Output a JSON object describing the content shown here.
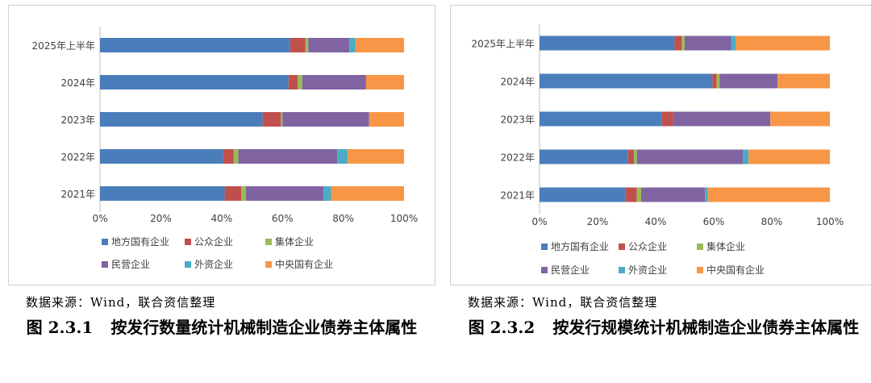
{
  "source": "数据来源：Wind，联合资信整理",
  "chart_data": [
    {
      "type": "bar",
      "orientation": "horizontal",
      "stacked": true,
      "percent": true,
      "figure_number": "图 2.3.1",
      "caption": "按发行数量统计机械制造企业债券主体属性",
      "categories": [
        "2025年上半年",
        "2024年",
        "2023年",
        "2022年",
        "2021年"
      ],
      "series": [
        {
          "name": "地方国有企业",
          "color": "#4A7EBB",
          "values": [
            62.5,
            62,
            53.5,
            40.5,
            41
          ]
        },
        {
          "name": "公众企业",
          "color": "#C0504D",
          "values": [
            5,
            3,
            6,
            3.5,
            5.5
          ]
        },
        {
          "name": "集体企业",
          "color": "#9BBB59",
          "values": [
            1,
            1.5,
            0.5,
            1.5,
            1.5
          ]
        },
        {
          "name": "民营企业",
          "color": "#8064A2",
          "values": [
            13.5,
            21,
            28.5,
            32.5,
            25.5
          ]
        },
        {
          "name": "外资企业",
          "color": "#4BACC6",
          "values": [
            2,
            0,
            0,
            3.5,
            2.5
          ]
        },
        {
          "name": "中央国有企业",
          "color": "#F79646",
          "values": [
            16,
            12.5,
            11.5,
            18.5,
            24
          ]
        }
      ],
      "xlim": [
        0,
        100
      ],
      "xticks": [
        "0%",
        "20%",
        "40%",
        "60%",
        "80%",
        "100%"
      ],
      "legend_position": "bottom",
      "grid": false
    },
    {
      "type": "bar",
      "orientation": "horizontal",
      "stacked": true,
      "percent": true,
      "figure_number": "图 2.3.2",
      "caption": "按发行规模统计机械制造企业债券主体属性",
      "categories": [
        "2025年上半年",
        "2024年",
        "2023年",
        "2022年",
        "2021年"
      ],
      "series": [
        {
          "name": "地方国有企业",
          "color": "#4A7EBB",
          "values": [
            46.5,
            59.5,
            42,
            30.5,
            29.5
          ]
        },
        {
          "name": "公众企业",
          "color": "#C0504D",
          "values": [
            2.5,
            1.5,
            4,
            2,
            4
          ]
        },
        {
          "name": "集体企业",
          "color": "#9BBB59",
          "values": [
            1,
            1,
            0,
            1,
            1.5
          ]
        },
        {
          "name": "民营企业",
          "color": "#8064A2",
          "values": [
            16,
            20,
            33.5,
            36.5,
            22
          ]
        },
        {
          "name": "外资企业",
          "color": "#4BACC6",
          "values": [
            1.5,
            0,
            0,
            2,
            1
          ]
        },
        {
          "name": "中央国有企业",
          "color": "#F79646",
          "values": [
            32.5,
            18,
            20.5,
            28,
            42
          ]
        }
      ],
      "xlim": [
        0,
        100
      ],
      "xticks": [
        "0%",
        "20%",
        "40%",
        "60%",
        "80%",
        "100%"
      ],
      "legend_position": "bottom",
      "grid": false
    }
  ]
}
